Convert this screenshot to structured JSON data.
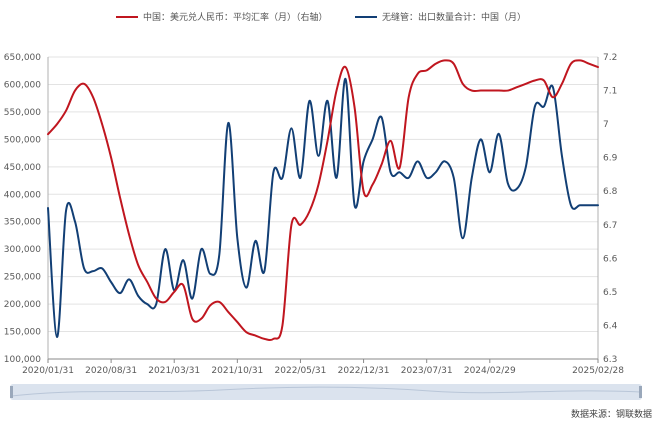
{
  "chart_data": {
    "type": "line",
    "x_ticks": [
      "2020/01/31",
      "2020/08/31",
      "2021/03/31",
      "2021/10/31",
      "2022/05/31",
      "2022/12/31",
      "2023/07/31",
      "2024/02/29",
      "2025/02/28"
    ],
    "y_left": {
      "ticks": [
        "100,000",
        "150,000",
        "200,000",
        "250,000",
        "300,000",
        "350,000",
        "400,000",
        "450,000",
        "500,000",
        "550,000",
        "600,000",
        "650,000"
      ],
      "range": [
        100000,
        650000
      ]
    },
    "y_right": {
      "ticks": [
        "6.3",
        "6.4",
        "6.5",
        "6.6",
        "6.7",
        "6.8",
        "6.9",
        "7",
        "7.1",
        "7.2"
      ],
      "range": [
        6.3,
        7.2
      ]
    },
    "grid": "horizontal",
    "legend_position": "top",
    "series": [
      {
        "name": "中国：美元兑人民币：平均汇率（月）（右轴）",
        "axis": "right",
        "color": "#c0161f",
        "x": [
          "2020-01",
          "2020-02",
          "2020-03",
          "2020-04",
          "2020-05",
          "2020-06",
          "2020-07",
          "2020-08",
          "2020-09",
          "2020-10",
          "2020-11",
          "2020-12",
          "2021-01",
          "2021-02",
          "2021-03",
          "2021-04",
          "2021-05",
          "2021-06",
          "2021-07",
          "2021-08",
          "2021-09",
          "2021-10",
          "2021-11",
          "2021-12",
          "2022-01",
          "2022-02",
          "2022-03",
          "2022-04",
          "2022-05",
          "2022-06",
          "2022-07",
          "2022-08",
          "2022-09",
          "2022-10",
          "2022-11",
          "2022-12",
          "2023-01",
          "2023-02",
          "2023-03",
          "2023-04",
          "2023-05",
          "2023-06",
          "2023-07",
          "2023-08",
          "2023-09",
          "2023-10",
          "2023-11",
          "2023-12",
          "2024-01",
          "2024-02",
          "2024-03",
          "2024-04",
          "2024-05",
          "2024-06",
          "2024-07",
          "2024-08",
          "2024-09",
          "2024-10",
          "2024-11",
          "2024-12",
          "2025-01",
          "2025-02"
        ],
        "y": [
          6.97,
          7.0,
          7.04,
          7.1,
          7.12,
          7.08,
          7.0,
          6.9,
          6.78,
          6.67,
          6.58,
          6.53,
          6.48,
          6.47,
          6.5,
          6.52,
          6.42,
          6.42,
          6.46,
          6.47,
          6.44,
          6.41,
          6.38,
          6.37,
          6.36,
          6.36,
          6.4,
          6.7,
          6.7,
          6.74,
          6.82,
          6.95,
          7.1,
          7.17,
          7.05,
          6.8,
          6.82,
          6.88,
          6.95,
          6.87,
          7.08,
          7.15,
          7.16,
          7.18,
          7.19,
          7.18,
          7.12,
          7.1,
          7.1,
          7.1,
          7.1,
          7.1,
          7.11,
          7.12,
          7.13,
          7.13,
          7.08,
          7.12,
          7.18,
          7.19,
          7.18,
          7.17
        ]
      },
      {
        "name": "无缝管：出口数量合计：中国（月）",
        "axis": "left",
        "color": "#123f75",
        "x": [
          "2020-01",
          "2020-02",
          "2020-03",
          "2020-04",
          "2020-05",
          "2020-06",
          "2020-07",
          "2020-08",
          "2020-09",
          "2020-10",
          "2020-11",
          "2020-12",
          "2021-01",
          "2021-02",
          "2021-03",
          "2021-04",
          "2021-05",
          "2021-06",
          "2021-07",
          "2021-08",
          "2021-09",
          "2021-10",
          "2021-11",
          "2021-12",
          "2022-01",
          "2022-02",
          "2022-03",
          "2022-04",
          "2022-05",
          "2022-06",
          "2022-07",
          "2022-08",
          "2022-09",
          "2022-10",
          "2022-11",
          "2022-12",
          "2023-01",
          "2023-02",
          "2023-03",
          "2023-04",
          "2023-05",
          "2023-06",
          "2023-07",
          "2023-08",
          "2023-09",
          "2023-10",
          "2023-11",
          "2023-12",
          "2024-01",
          "2024-02",
          "2024-03",
          "2024-04",
          "2024-05",
          "2024-06",
          "2024-07",
          "2024-08",
          "2024-09",
          "2024-10",
          "2024-11",
          "2024-12",
          "2025-01",
          "2025-02"
        ],
        "y": [
          375000,
          140000,
          370000,
          350000,
          265000,
          260000,
          265000,
          240000,
          220000,
          245000,
          215000,
          200000,
          200000,
          300000,
          225000,
          280000,
          210000,
          300000,
          255000,
          290000,
          530000,
          320000,
          230000,
          315000,
          260000,
          440000,
          430000,
          520000,
          430000,
          570000,
          470000,
          570000,
          430000,
          610000,
          380000,
          460000,
          500000,
          540000,
          440000,
          440000,
          430000,
          460000,
          430000,
          440000,
          460000,
          430000,
          320000,
          430000,
          500000,
          440000,
          510000,
          420000,
          410000,
          450000,
          560000,
          560000,
          595000,
          470000,
          380000,
          380000,
          380000,
          380000
        ]
      }
    ]
  },
  "legend": {
    "red_label": "中国：美元兑人民币：平均汇率（月）（右轴）",
    "blue_label": "无缝管：出口数量合计：中国（月）"
  },
  "source_text": "数据来源：钢联数据"
}
